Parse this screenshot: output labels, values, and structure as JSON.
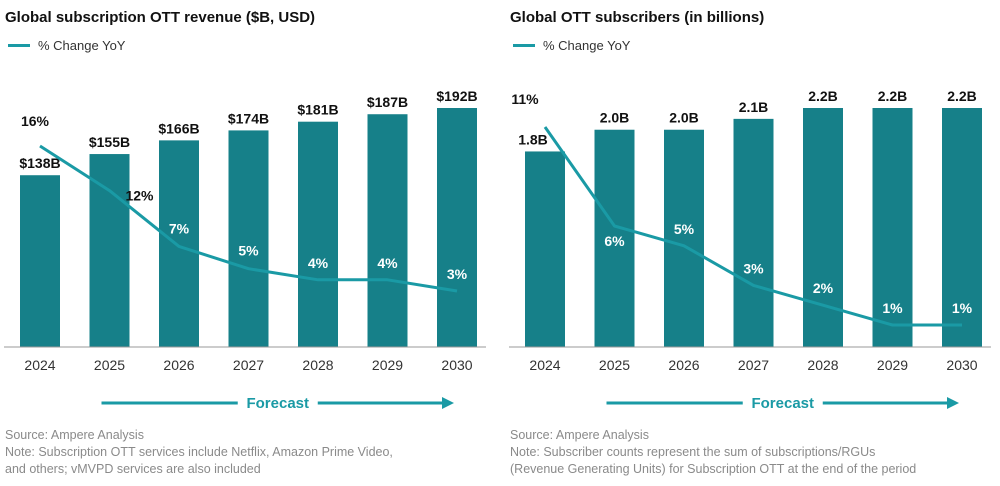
{
  "colors": {
    "bar": "#168089",
    "line": "#1a9aa5",
    "forecast": "#1a9aa5",
    "axis": "#999999"
  },
  "chart_data": [
    {
      "type": "bar",
      "title": "Global subscription OTT revenue ($B, USD)",
      "categories": [
        "2024",
        "2025",
        "2026",
        "2027",
        "2028",
        "2029",
        "2030"
      ],
      "series": [
        {
          "values": [
            138,
            155,
            166,
            174,
            181,
            187,
            192
          ],
          "labels": [
            "$138B",
            "$155B",
            "$166B",
            "$174B",
            "$181B",
            "$187B",
            "$192B"
          ]
        }
      ],
      "line_series": {
        "name": "% Change YoY",
        "values": [
          16,
          12,
          7,
          5,
          4,
          4,
          3
        ],
        "labels": [
          "16%",
          "12%",
          "7%",
          "5%",
          "4%",
          "4%",
          "3%"
        ]
      },
      "annotation": "Forecast",
      "grid": false,
      "legend": "top-left"
    },
    {
      "type": "bar",
      "title": "Global OTT subscribers (in billions)",
      "categories": [
        "2024",
        "2025",
        "2026",
        "2027",
        "2028",
        "2029",
        "2030"
      ],
      "series": [
        {
          "values": [
            1.8,
            2.0,
            2.0,
            2.1,
            2.2,
            2.2,
            2.2
          ],
          "labels": [
            "1.8B",
            "2.0B",
            "2.0B",
            "2.1B",
            "2.2B",
            "2.2B",
            "2.2B"
          ]
        }
      ],
      "line_series": {
        "name": "% Change YoY",
        "values": [
          11,
          6,
          5,
          3,
          2,
          1,
          1
        ],
        "labels": [
          "11%",
          "6%",
          "5%",
          "3%",
          "2%",
          "1%",
          "1%"
        ]
      },
      "annotation": "Forecast",
      "grid": false,
      "legend": "top-left"
    }
  ],
  "notes": [
    {
      "source": "Source: Ampere Analysis",
      "note_line1": "Note: Subscription OTT services include Netflix, Amazon Prime Video,",
      "note_line2": "and others; vMVPD services are also included"
    },
    {
      "source": "Source: Ampere Analysis",
      "note_line1": "Note: Subscriber counts represent the sum of subscriptions/RGUs",
      "note_line2": "(Revenue Generating Units) for Subscription OTT at the end of the period"
    }
  ]
}
